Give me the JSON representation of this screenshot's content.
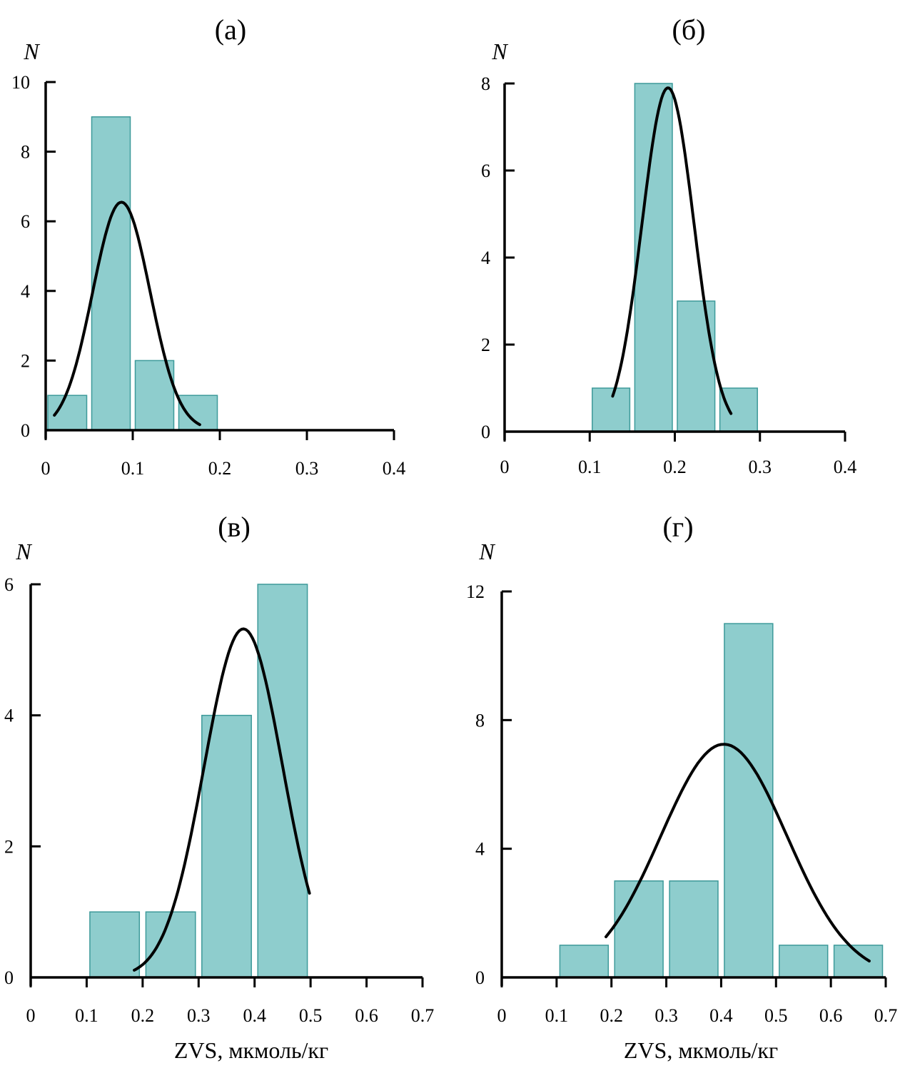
{
  "chart_data": [
    {
      "type": "bar",
      "panel_label": "(а)",
      "ylabel": "N",
      "xlabel": "",
      "xlim": [
        0,
        0.4
      ],
      "ylim": [
        0,
        10
      ],
      "x_ticks": [
        "0",
        "0.1",
        "0.2",
        "0.3",
        "0.4"
      ],
      "y_ticks": [
        "0",
        "2",
        "4",
        "6",
        "8",
        "10"
      ],
      "bins": [
        {
          "from": 0.0,
          "to": 0.05,
          "count": 1
        },
        {
          "from": 0.05,
          "to": 0.1,
          "count": 9
        },
        {
          "from": 0.1,
          "to": 0.15,
          "count": 2
        },
        {
          "from": 0.15,
          "to": 0.2,
          "count": 1
        }
      ],
      "fit_curve": {
        "type": "normal",
        "mean": 0.087,
        "sd": 0.033,
        "peak": 6.55,
        "x_from": 0.01,
        "x_to": 0.177
      }
    },
    {
      "type": "bar",
      "panel_label": "(б)",
      "ylabel": "N",
      "xlabel": "",
      "xlim": [
        0,
        0.4
      ],
      "ylim": [
        0,
        8
      ],
      "x_ticks": [
        "0",
        "0.1",
        "0.2",
        "0.3",
        "0.4"
      ],
      "y_ticks": [
        "0",
        "2",
        "4",
        "6",
        "8"
      ],
      "bins": [
        {
          "from": 0.1,
          "to": 0.15,
          "count": 1
        },
        {
          "from": 0.15,
          "to": 0.2,
          "count": 8
        },
        {
          "from": 0.2,
          "to": 0.25,
          "count": 3
        },
        {
          "from": 0.25,
          "to": 0.3,
          "count": 1
        }
      ],
      "fit_curve": {
        "type": "normal",
        "mean": 0.192,
        "sd": 0.0305,
        "peak": 7.9,
        "x_from": 0.127,
        "x_to": 0.266
      }
    },
    {
      "type": "bar",
      "panel_label": "(в)",
      "ylabel": "N",
      "xlabel": "ZVS, мкмоль/кг",
      "xlim": [
        0,
        0.7
      ],
      "ylim": [
        0,
        6
      ],
      "x_ticks": [
        "0",
        "0.1",
        "0.2",
        "0.3",
        "0.4",
        "0.5",
        "0.6",
        "0.7"
      ],
      "y_ticks": [
        "0",
        "2",
        "4",
        "6"
      ],
      "bins": [
        {
          "from": 0.1,
          "to": 0.2,
          "count": 1
        },
        {
          "from": 0.2,
          "to": 0.3,
          "count": 1
        },
        {
          "from": 0.3,
          "to": 0.4,
          "count": 4
        },
        {
          "from": 0.4,
          "to": 0.5,
          "count": 6
        }
      ],
      "fit_curve": {
        "type": "normal",
        "mean": 0.38,
        "sd": 0.07,
        "peak": 5.32,
        "x_from": 0.185,
        "x_to": 0.498
      }
    },
    {
      "type": "bar",
      "panel_label": "(г)",
      "ylabel": "N",
      "xlabel": "ZVS, мкмоль/кг",
      "xlim": [
        0,
        0.7
      ],
      "ylim": [
        0,
        12
      ],
      "x_ticks": [
        "0",
        "0.1",
        "0.2",
        "0.3",
        "0.4",
        "0.5",
        "0.6",
        "0.7"
      ],
      "y_ticks": [
        "0",
        "4",
        "8",
        "12"
      ],
      "bins": [
        {
          "from": 0.1,
          "to": 0.2,
          "count": 1
        },
        {
          "from": 0.2,
          "to": 0.3,
          "count": 3
        },
        {
          "from": 0.3,
          "to": 0.4,
          "count": 3
        },
        {
          "from": 0.4,
          "to": 0.5,
          "count": 11
        },
        {
          "from": 0.5,
          "to": 0.6,
          "count": 1
        },
        {
          "from": 0.6,
          "to": 0.7,
          "count": 1
        }
      ],
      "fit_curve": {
        "type": "normal",
        "mean": 0.405,
        "sd": 0.115,
        "peak": 7.25,
        "x_from": 0.19,
        "x_to": 0.67
      }
    }
  ]
}
